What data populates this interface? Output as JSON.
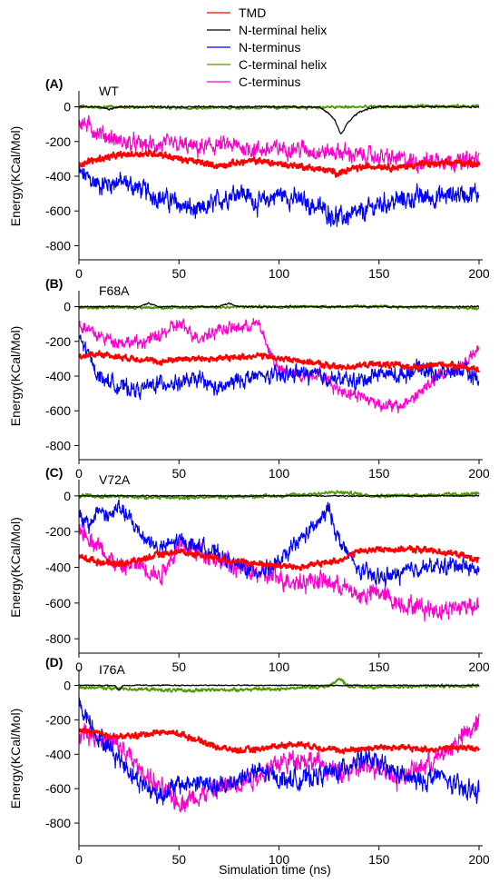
{
  "chart_data": {
    "type": "line",
    "legend": {
      "position": "top-center",
      "entries": [
        {
          "label": "TMD",
          "color": "#ff0000"
        },
        {
          "label": "N-terminal helix",
          "color": "#000000"
        },
        {
          "label": "N-terminus",
          "color": "#0000ff"
        },
        {
          "label": "C-terminal helix",
          "color": "#4c9900"
        },
        {
          "label": "C-terminus",
          "color": "#ff00cc"
        }
      ]
    },
    "xlabel": "Simulation time (ns)",
    "xlim": [
      0,
      200
    ],
    "xticks": [
      "0",
      "50",
      "100",
      "150",
      "200"
    ],
    "grid": false,
    "panels": [
      {
        "letter": "(A)",
        "name": "WT",
        "ylabel": "Energy(KCal/Mol)",
        "ylim": [
          -850,
          50
        ],
        "yticks": [
          "0",
          "-200",
          "-400",
          "-600",
          "-800"
        ],
        "series": [
          {
            "name": "N-terminus",
            "color": "#0000ff",
            "noise": 70,
            "x": [
              0,
              10,
              20,
              30,
              40,
              50,
              60,
              70,
              80,
              90,
              100,
              110,
              120,
              130,
              140,
              150,
              160,
              170,
              180,
              190,
              200
            ],
            "y": [
              -380,
              -450,
              -430,
              -470,
              -520,
              -560,
              -610,
              -540,
              -480,
              -560,
              -500,
              -540,
              -580,
              -640,
              -620,
              -560,
              -540,
              -520,
              -520,
              -500,
              -500
            ]
          },
          {
            "name": "C-terminus",
            "color": "#ff00cc",
            "noise": 60,
            "x": [
              0,
              10,
              20,
              30,
              40,
              50,
              60,
              70,
              80,
              90,
              100,
              110,
              120,
              130,
              140,
              150,
              160,
              170,
              180,
              190,
              200
            ],
            "y": [
              -80,
              -150,
              -200,
              -220,
              -220,
              -220,
              -240,
              -220,
              -230,
              -250,
              -240,
              -240,
              -260,
              -260,
              -280,
              -290,
              -300,
              -320,
              -300,
              -320,
              -300
            ]
          },
          {
            "name": "TMD",
            "color": "#ff0000",
            "noise": 22,
            "x": [
              0,
              10,
              20,
              30,
              40,
              50,
              60,
              70,
              80,
              90,
              100,
              110,
              120,
              130,
              140,
              150,
              160,
              170,
              180,
              190,
              200
            ],
            "y": [
              -330,
              -300,
              -280,
              -270,
              -270,
              -300,
              -320,
              -340,
              -320,
              -310,
              -330,
              -340,
              -360,
              -380,
              -350,
              -340,
              -350,
              -330,
              -330,
              -320,
              -330
            ]
          },
          {
            "name": "C-terminal helix",
            "color": "#4c9900",
            "noise": 10,
            "x": [
              0,
              50,
              100,
              150,
              200
            ],
            "y": [
              0,
              -5,
              -5,
              0,
              5
            ]
          },
          {
            "name": "N-terminal helix",
            "color": "#000000",
            "noise": 6,
            "x": [
              0,
              10,
              15,
              20,
              120,
              125,
              128,
              131,
              134,
              137,
              140,
              145,
              150,
              200
            ],
            "y": [
              0,
              0,
              -15,
              0,
              0,
              -40,
              -80,
              -160,
              -100,
              -60,
              -30,
              -10,
              0,
              0
            ]
          }
        ]
      },
      {
        "letter": "(B)",
        "name": "F68A",
        "ylabel": "Energy(KCal/Mol)",
        "ylim": [
          -850,
          50
        ],
        "yticks": [
          "0",
          "-200",
          "-400",
          "-600",
          "-800"
        ],
        "series": [
          {
            "name": "C-terminus",
            "color": "#ff00cc",
            "noise": 45,
            "x": [
              0,
              10,
              20,
              30,
              40,
              50,
              60,
              70,
              80,
              90,
              95,
              100,
              110,
              120,
              130,
              140,
              150,
              160,
              170,
              180,
              190,
              200
            ],
            "y": [
              -100,
              -170,
              -200,
              -210,
              -170,
              -100,
              -180,
              -130,
              -120,
              -100,
              -250,
              -370,
              -400,
              -380,
              -480,
              -510,
              -560,
              -580,
              -500,
              -400,
              -350,
              -250
            ]
          },
          {
            "name": "N-terminus",
            "color": "#0000ff",
            "noise": 55,
            "x": [
              0,
              10,
              20,
              30,
              40,
              50,
              60,
              70,
              80,
              90,
              100,
              110,
              120,
              130,
              140,
              150,
              160,
              170,
              180,
              190,
              200
            ],
            "y": [
              -170,
              -400,
              -460,
              -480,
              -440,
              -440,
              -420,
              -480,
              -420,
              -400,
              -400,
              -380,
              -400,
              -420,
              -430,
              -380,
              -400,
              -350,
              -390,
              -360,
              -420
            ]
          },
          {
            "name": "TMD",
            "color": "#ff0000",
            "noise": 20,
            "x": [
              0,
              10,
              20,
              30,
              40,
              50,
              60,
              70,
              80,
              90,
              100,
              110,
              120,
              130,
              140,
              150,
              160,
              170,
              180,
              190,
              200
            ],
            "y": [
              -290,
              -270,
              -290,
              -300,
              -320,
              -300,
              -300,
              -300,
              -290,
              -280,
              -300,
              -310,
              -330,
              -350,
              -340,
              -330,
              -340,
              -350,
              -330,
              -340,
              -370
            ]
          },
          {
            "name": "C-terminal helix",
            "color": "#4c9900",
            "noise": 10,
            "x": [
              0,
              50,
              100,
              150,
              200
            ],
            "y": [
              -5,
              -5,
              0,
              0,
              -10
            ]
          },
          {
            "name": "N-terminal helix",
            "color": "#000000",
            "noise": 5,
            "x": [
              0,
              30,
              35,
              40,
              45,
              70,
              75,
              80,
              85,
              200
            ],
            "y": [
              0,
              0,
              20,
              0,
              0,
              0,
              20,
              0,
              0,
              0
            ]
          }
        ]
      },
      {
        "letter": "(C)",
        "name": "V72A",
        "ylabel": "Energy(KCal/Mol)",
        "ylim": [
          -850,
          50
        ],
        "yticks": [
          "0",
          "-200",
          "-400",
          "-600",
          "-800"
        ],
        "series": [
          {
            "name": "C-terminus",
            "color": "#ff00cc",
            "noise": 65,
            "x": [
              0,
              10,
              20,
              30,
              40,
              50,
              60,
              70,
              80,
              90,
              100,
              110,
              120,
              130,
              140,
              150,
              160,
              170,
              180,
              190,
              200
            ],
            "y": [
              -180,
              -280,
              -400,
              -380,
              -450,
              -280,
              -300,
              -360,
              -400,
              -440,
              -460,
              -480,
              -470,
              -500,
              -560,
              -540,
              -600,
              -620,
              -640,
              -620,
              -600
            ]
          },
          {
            "name": "N-terminus",
            "color": "#0000ff",
            "noise": 55,
            "x": [
              0,
              5,
              10,
              15,
              20,
              30,
              40,
              50,
              60,
              70,
              80,
              90,
              100,
              110,
              120,
              125,
              130,
              140,
              150,
              160,
              170,
              180,
              190,
              200
            ],
            "y": [
              -120,
              -170,
              -70,
              -120,
              -60,
              -200,
              -300,
              -250,
              -280,
              -330,
              -400,
              -420,
              -380,
              -250,
              -150,
              -70,
              -250,
              -420,
              -460,
              -440,
              -400,
              -400,
              -380,
              -420
            ]
          },
          {
            "name": "TMD",
            "color": "#ff0000",
            "noise": 20,
            "x": [
              0,
              10,
              20,
              30,
              40,
              50,
              60,
              70,
              80,
              90,
              100,
              110,
              120,
              130,
              140,
              150,
              160,
              170,
              180,
              190,
              200
            ],
            "y": [
              -340,
              -370,
              -380,
              -360,
              -330,
              -310,
              -330,
              -350,
              -370,
              -380,
              -390,
              -400,
              -380,
              -360,
              -310,
              -300,
              -300,
              -300,
              -310,
              -330,
              -360
            ]
          },
          {
            "name": "C-terminal helix",
            "color": "#4c9900",
            "noise": 12,
            "x": [
              0,
              50,
              100,
              130,
              150,
              200
            ],
            "y": [
              0,
              -10,
              0,
              20,
              0,
              10
            ]
          },
          {
            "name": "N-terminal helix",
            "color": "#000000",
            "noise": 4,
            "x": [
              0,
              100,
              200
            ],
            "y": [
              0,
              0,
              0
            ]
          }
        ]
      },
      {
        "letter": "(D)",
        "name": "I76A",
        "ylabel": "Energy(KCal/Mol)",
        "ylim": [
          -900,
          50
        ],
        "yticks": [
          "0",
          "-200",
          "-400",
          "-600",
          "-800"
        ],
        "series": [
          {
            "name": "C-terminus",
            "color": "#ff00cc",
            "noise": 75,
            "x": [
              0,
              10,
              20,
              30,
              40,
              50,
              60,
              70,
              80,
              90,
              100,
              110,
              120,
              130,
              140,
              150,
              160,
              170,
              180,
              190,
              200
            ],
            "y": [
              -250,
              -300,
              -350,
              -480,
              -600,
              -680,
              -640,
              -600,
              -560,
              -520,
              -450,
              -420,
              -450,
              -520,
              -480,
              -460,
              -540,
              -480,
              -420,
              -320,
              -220
            ]
          },
          {
            "name": "N-terminus",
            "color": "#0000ff",
            "noise": 70,
            "x": [
              0,
              10,
              20,
              30,
              40,
              50,
              60,
              70,
              80,
              90,
              100,
              110,
              120,
              130,
              140,
              150,
              160,
              170,
              180,
              190,
              200
            ],
            "y": [
              -100,
              -300,
              -420,
              -560,
              -640,
              -580,
              -560,
              -600,
              -540,
              -500,
              -540,
              -550,
              -520,
              -500,
              -420,
              -460,
              -520,
              -560,
              -520,
              -600,
              -620
            ]
          },
          {
            "name": "TMD",
            "color": "#ff0000",
            "noise": 20,
            "x": [
              0,
              10,
              20,
              30,
              40,
              50,
              60,
              70,
              80,
              90,
              100,
              110,
              120,
              130,
              140,
              150,
              160,
              170,
              180,
              190,
              200
            ],
            "y": [
              -260,
              -280,
              -300,
              -290,
              -270,
              -280,
              -320,
              -360,
              -380,
              -370,
              -350,
              -340,
              -360,
              -380,
              -370,
              -360,
              -360,
              -370,
              -370,
              -360,
              -370
            ]
          },
          {
            "name": "C-terminal helix",
            "color": "#4c9900",
            "noise": 12,
            "x": [
              0,
              50,
              100,
              125,
              130,
              135,
              150,
              200
            ],
            "y": [
              -10,
              -30,
              -20,
              -5,
              40,
              -5,
              -10,
              0
            ]
          },
          {
            "name": "N-terminal helix",
            "color": "#000000",
            "noise": 4,
            "x": [
              0,
              18,
              20,
              22,
              24,
              200
            ],
            "y": [
              0,
              0,
              -30,
              0,
              0,
              0
            ]
          }
        ]
      }
    ]
  }
}
